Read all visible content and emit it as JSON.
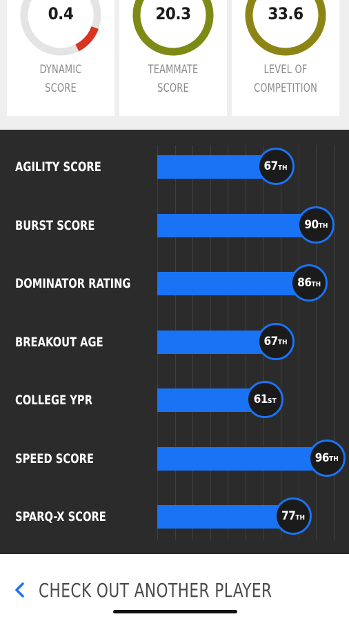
{
  "gauges": [
    {
      "value": "0.4",
      "label_line1": "DYNAMIC",
      "label_line2": "SCORE",
      "color": "#d9341f",
      "fraction": 0.12
    },
    {
      "value": "20.3",
      "label_line1": "TEAMMATE",
      "label_line2": "SCORE",
      "color": "#7d8a15",
      "fraction": 1.0
    },
    {
      "value": "33.6",
      "label_line1": "LEVEL OF",
      "label_line2": "COMPETITION",
      "color": "#8c8515",
      "fraction": 1.0
    }
  ],
  "metrics": [
    {
      "label": "AGILITY SCORE",
      "rank": "67",
      "suffix": "TH",
      "percentile": 67
    },
    {
      "label": "BURST SCORE",
      "rank": "90",
      "suffix": "TH",
      "percentile": 90
    },
    {
      "label": "DOMINATOR RATING",
      "rank": "86",
      "suffix": "TH",
      "percentile": 86
    },
    {
      "label": "BREAKOUT AGE",
      "rank": "67",
      "suffix": "TH",
      "percentile": 67
    },
    {
      "label": "COLLEGE YPR",
      "rank": "61",
      "suffix": "ST",
      "percentile": 61
    },
    {
      "label": "SPEED SCORE",
      "rank": "96",
      "suffix": "TH",
      "percentile": 96
    },
    {
      "label": "SPARQ-X SCORE",
      "rank": "77",
      "suffix": "TH",
      "percentile": 77
    }
  ],
  "colors": {
    "accent": "#1a73f5",
    "panel_bg": "#2b2b2b",
    "ring_track": "#e4e4e4"
  },
  "bottom": {
    "link_label": "CHECK OUT ANOTHER PLAYER",
    "icon": "chevron-left-icon"
  }
}
